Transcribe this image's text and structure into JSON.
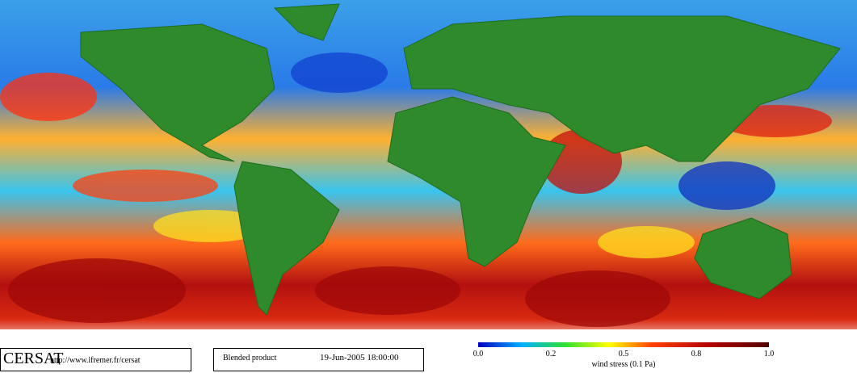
{
  "logo": "CERSAT",
  "url": "http://www.ifremer.fr/cersat",
  "product": "Blended product",
  "date": "19-Jun-2005 18:00:00",
  "colorbar": {
    "label": "wind stress (0.1 Pa)",
    "ticks": [
      "0.0",
      "0.2",
      "0.5",
      "0.8",
      "1.0"
    ]
  }
}
